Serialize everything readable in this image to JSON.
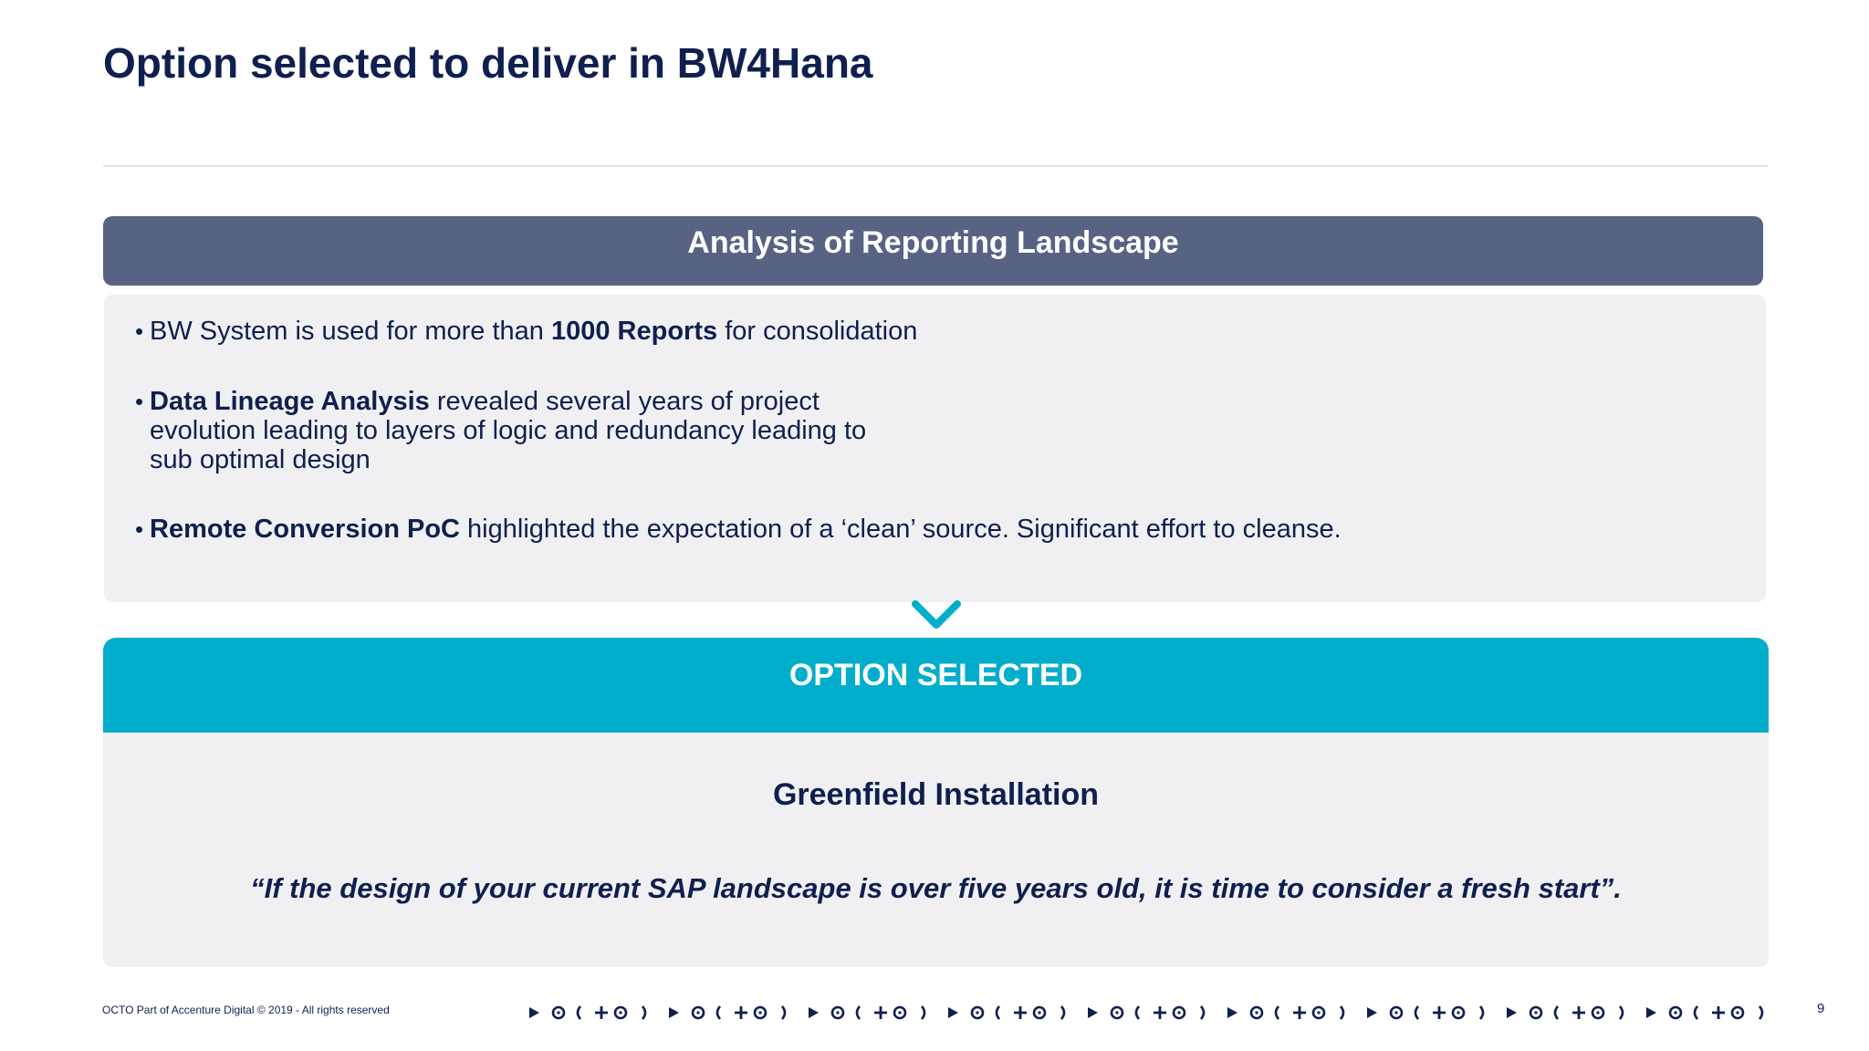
{
  "slide": {
    "title": "Option selected to deliver in BW4Hana"
  },
  "analysis": {
    "header": "Analysis of Reporting Landscape",
    "bullets": [
      {
        "pre": "BW System is used for more than ",
        "bold": "1000 Reports",
        "post": " for consolidation"
      },
      {
        "bold": "Data Lineage Analysis",
        "post": " revealed several years of project evolution leading to layers of logic and redundancy leading to sub optimal design"
      },
      {
        "bold": "Remote Conversion PoC",
        "post": " highlighted the expectation of a ‘clean’ source. Significant effort to cleanse."
      }
    ]
  },
  "option": {
    "header": "OPTION SELECTED",
    "title": "Greenfield Installation",
    "quote": "“If the design of your current SAP landscape is over five years old, it is time to consider a fresh start”."
  },
  "footer": {
    "text": "OCTO Part of Accenture Digital © 2019 - All rights reserved",
    "page_number": "9"
  },
  "icons": {
    "chevron": "chevron-down-icon",
    "pattern": "decorative-symbol-pattern"
  },
  "colors": {
    "navy": "#0f1f4f",
    "header_slate": "#586384",
    "accent_cyan": "#00aecb",
    "panel_gray": "#f0f0f2"
  }
}
